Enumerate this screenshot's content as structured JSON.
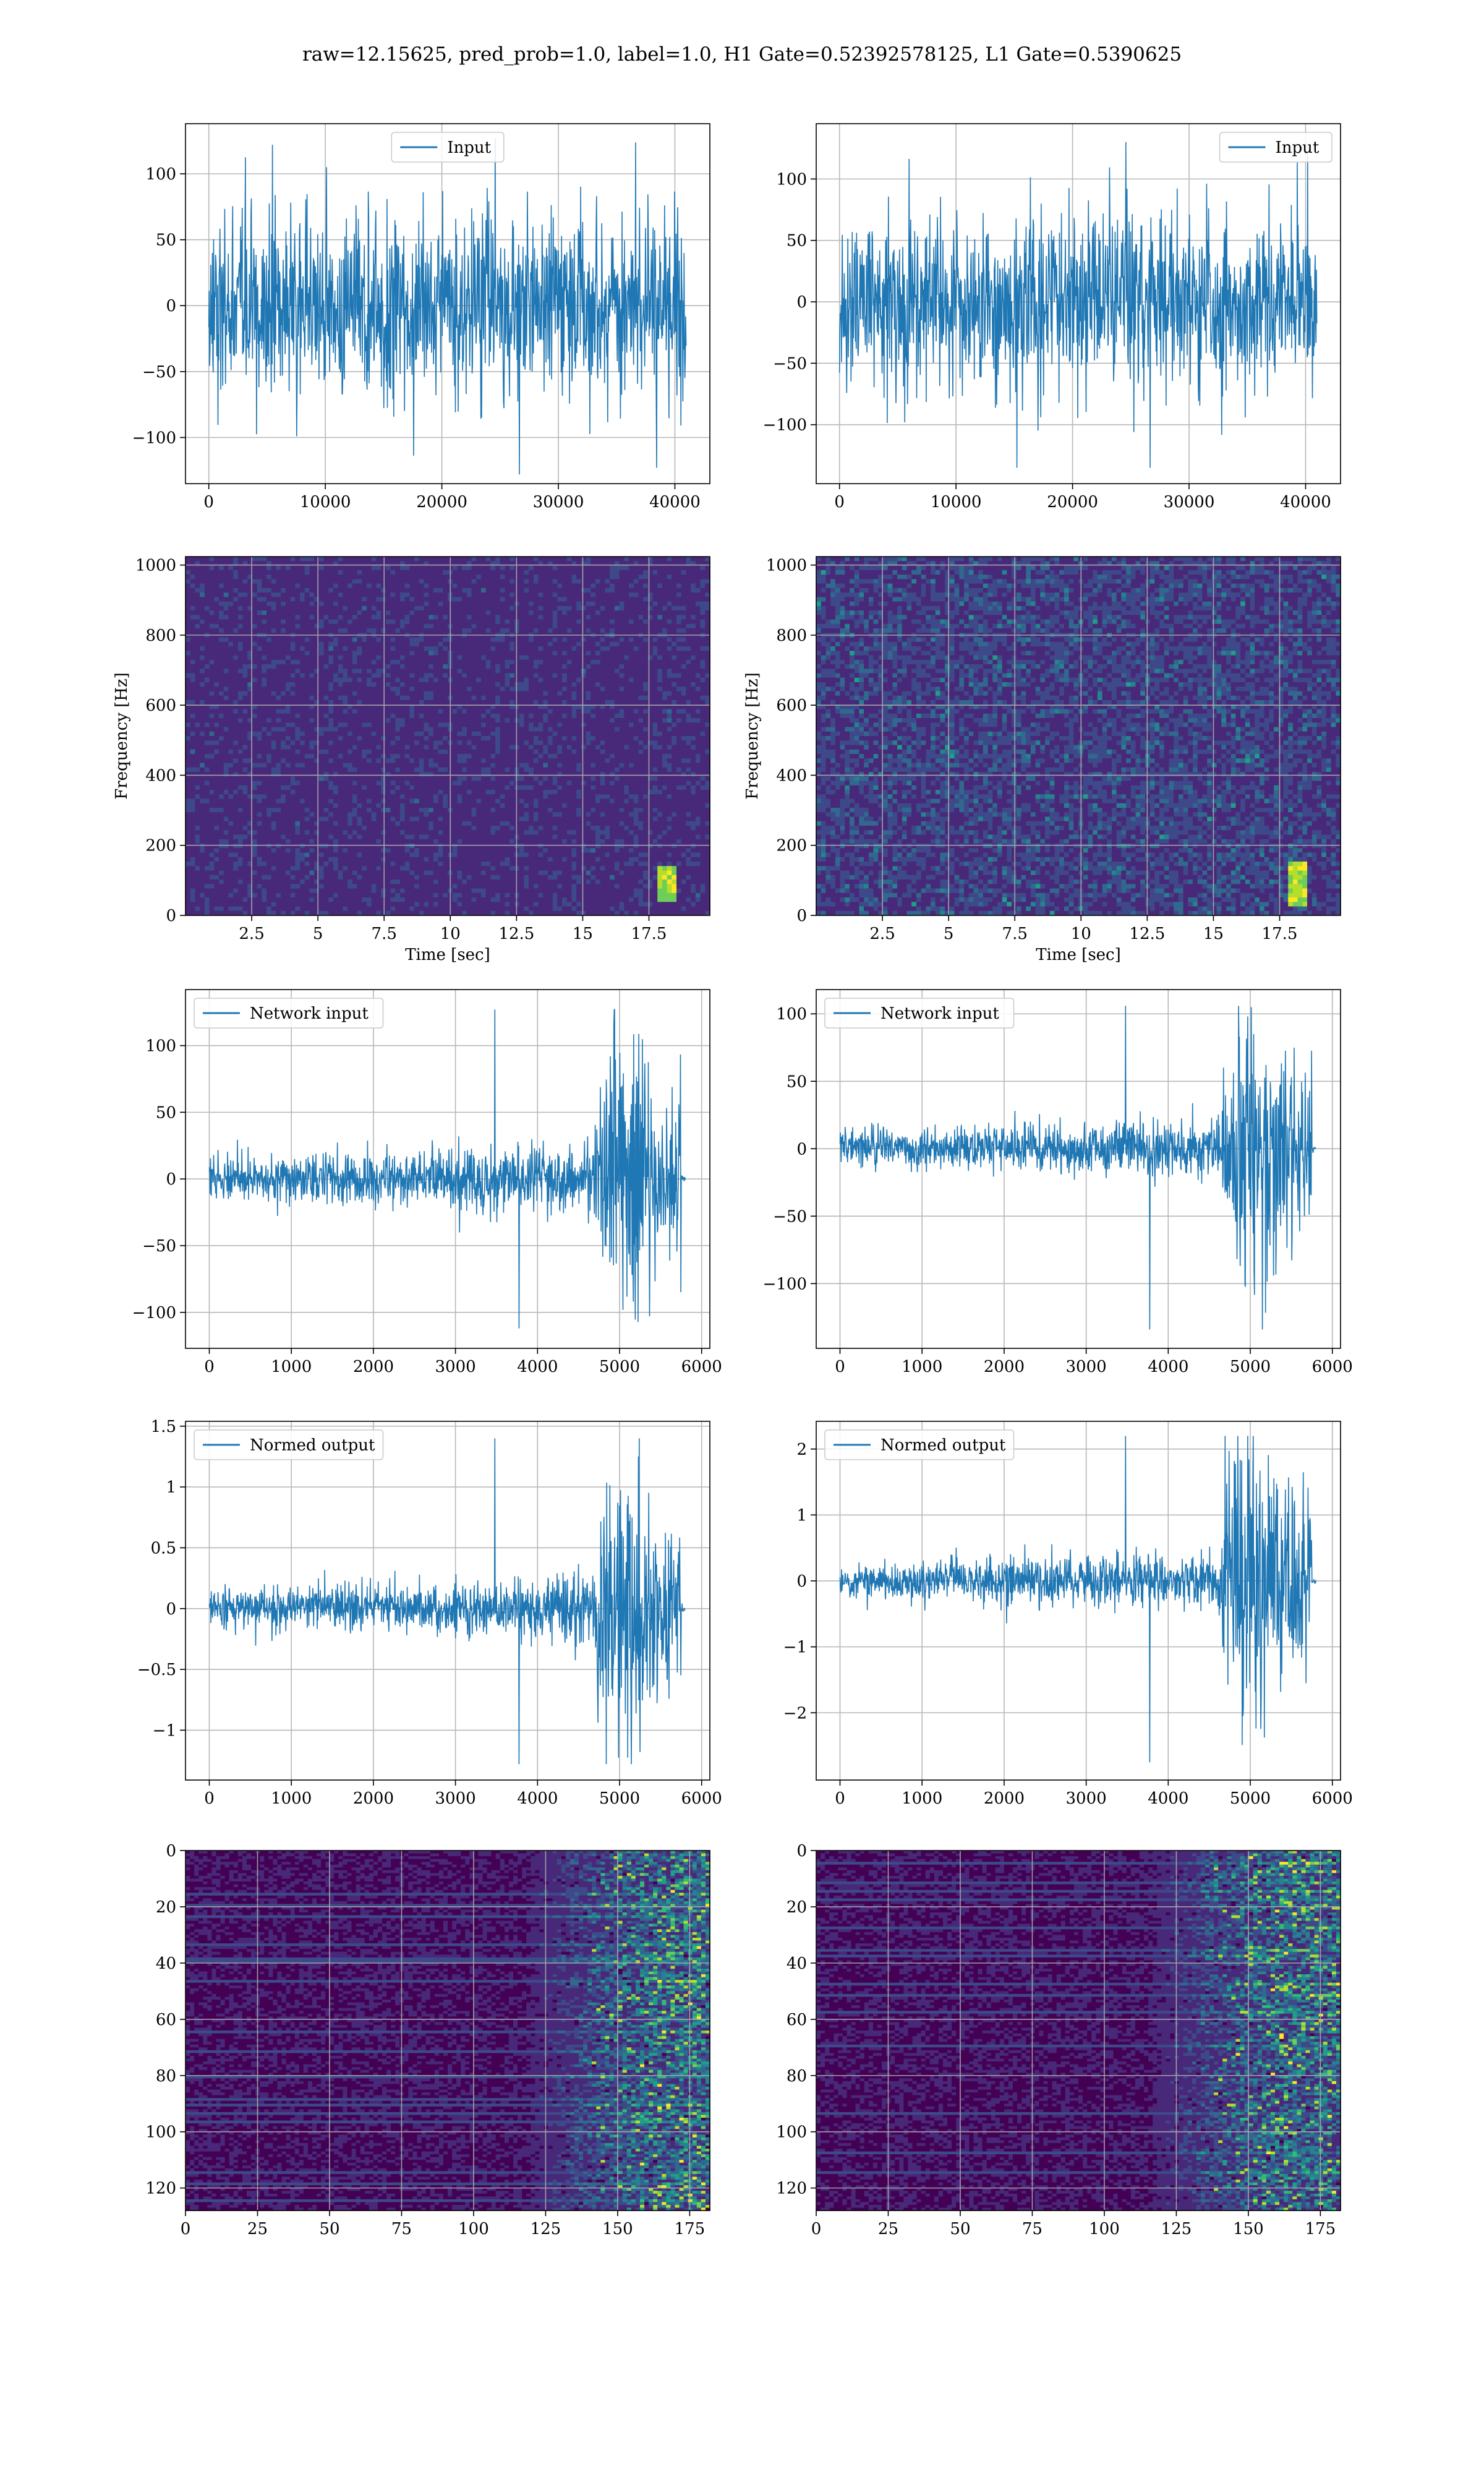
{
  "title": "raw=12.15625, pred_prob=1.0, label=1.0, H1 Gate=0.52392578125, L1 Gate=0.5390625",
  "colors": {
    "line": "#1f77b4",
    "grid": "#b0b0b0",
    "viridis": [
      "#440154",
      "#482878",
      "#3e4989",
      "#31688e",
      "#26828e",
      "#1f9e89",
      "#35b779",
      "#6ece58",
      "#b5de2b",
      "#fde725"
    ]
  },
  "chart_data": [
    {
      "type": "line",
      "panel": "row1-left",
      "legend": [
        "Input"
      ],
      "legend_loc": "upper center",
      "xlim": [
        -2000,
        43000
      ],
      "ylim": [
        -135,
        138
      ],
      "xticks": [
        0,
        10000,
        20000,
        30000,
        40000
      ],
      "yticks": [
        -100,
        -50,
        0,
        50,
        100
      ],
      "series": [
        {
          "name": "Input",
          "x_range": [
            0,
            40960
          ],
          "envelope": {
            "typical_amplitude": 60,
            "max": 127,
            "min": -128
          }
        }
      ]
    },
    {
      "type": "line",
      "panel": "row1-right",
      "legend": [
        "Input"
      ],
      "legend_loc": "upper right",
      "xlim": [
        -2000,
        43000
      ],
      "ylim": [
        -148,
        145
      ],
      "xticks": [
        0,
        10000,
        20000,
        30000,
        40000
      ],
      "yticks": [
        -100,
        -50,
        0,
        50,
        100
      ],
      "series": [
        {
          "name": "Input",
          "x_range": [
            0,
            40960
          ],
          "envelope": {
            "typical_amplitude": 60,
            "max": 130,
            "min": -135
          }
        }
      ]
    },
    {
      "type": "heatmap",
      "panel": "row2-left",
      "xlabel": "Time [sec]",
      "ylabel": "Frequency [Hz]",
      "xlim": [
        0,
        19.8
      ],
      "ylim": [
        0,
        1024
      ],
      "xticks": [
        2.5,
        5.0,
        7.5,
        10.0,
        12.5,
        15.0,
        17.5
      ],
      "yticks": [
        0,
        200,
        400,
        600,
        800,
        1000
      ],
      "features": [
        {
          "time_sec": 18.2,
          "freq_range_hz": [
            40,
            140
          ],
          "note": "bright chirp"
        }
      ]
    },
    {
      "type": "heatmap",
      "panel": "row2-right",
      "xlabel": "Time [sec]",
      "ylabel": "Frequency [Hz]",
      "xlim": [
        0,
        19.8
      ],
      "ylim": [
        0,
        1024
      ],
      "xticks": [
        2.5,
        5.0,
        7.5,
        10.0,
        12.5,
        15.0,
        17.5
      ],
      "yticks": [
        0,
        200,
        400,
        600,
        800,
        1000
      ],
      "features": [
        {
          "time_sec": 18.2,
          "freq_range_hz": [
            30,
            160
          ],
          "note": "bright chirp"
        }
      ]
    },
    {
      "type": "line",
      "panel": "row3-left",
      "legend": [
        "Network input"
      ],
      "legend_loc": "upper left",
      "xlim": [
        -290,
        6100
      ],
      "ylim": [
        -127,
        142
      ],
      "xticks": [
        0,
        1000,
        2000,
        3000,
        4000,
        5000,
        6000
      ],
      "yticks": [
        -100,
        -50,
        0,
        50,
        100
      ],
      "series": [
        {
          "name": "Network input",
          "x_range": [
            0,
            5800
          ],
          "envelope": {
            "pre_merger_amplitude": 18,
            "merger_start": 4700,
            "merger_end": 5750,
            "max": 127,
            "min": -112
          }
        }
      ]
    },
    {
      "type": "line",
      "panel": "row3-right",
      "legend": [
        "Network input"
      ],
      "legend_loc": "upper left",
      "xlim": [
        -290,
        6100
      ],
      "ylim": [
        -148,
        118
      ],
      "xticks": [
        0,
        1000,
        2000,
        3000,
        4000,
        5000,
        6000
      ],
      "yticks": [
        -100,
        -50,
        0,
        50,
        100
      ],
      "series": [
        {
          "name": "Network input",
          "x_range": [
            0,
            5800
          ],
          "envelope": {
            "pre_merger_amplitude": 15,
            "merger_start": 4650,
            "merger_end": 5750,
            "max": 106,
            "min": -134
          }
        }
      ]
    },
    {
      "type": "line",
      "panel": "row4-left",
      "legend": [
        "Normed output"
      ],
      "legend_loc": "upper left",
      "xlim": [
        -290,
        6100
      ],
      "ylim": [
        -1.41,
        1.54
      ],
      "xticks": [
        0,
        1000,
        2000,
        3000,
        4000,
        5000,
        6000
      ],
      "yticks": [
        -1.0,
        -0.5,
        0.0,
        0.5,
        1.0,
        1.5
      ],
      "series": [
        {
          "name": "Normed output",
          "x_range": [
            0,
            5800
          ],
          "envelope": {
            "pre_merger_amplitude": 0.18,
            "merger_start": 4700,
            "merger_end": 5750,
            "max": 1.4,
            "min": -1.28
          }
        }
      ]
    },
    {
      "type": "line",
      "panel": "row4-right",
      "legend": [
        "Normed output"
      ],
      "legend_loc": "upper left",
      "xlim": [
        -290,
        6100
      ],
      "ylim": [
        -3.02,
        2.42
      ],
      "xticks": [
        0,
        1000,
        2000,
        3000,
        4000,
        5000,
        6000
      ],
      "yticks": [
        -2,
        -1,
        0,
        1,
        2
      ],
      "series": [
        {
          "name": "Normed output",
          "x_range": [
            0,
            5800
          ],
          "envelope": {
            "pre_merger_amplitude": 0.3,
            "merger_start": 4650,
            "merger_end": 5750,
            "max": 2.2,
            "min": -2.75
          }
        }
      ]
    },
    {
      "type": "heatmap",
      "panel": "row5-left",
      "xlim": [
        0,
        182
      ],
      "ylim": [
        128,
        0
      ],
      "xticks": [
        0,
        25,
        50,
        75,
        100,
        125,
        150,
        175
      ],
      "yticks": [
        0,
        20,
        40,
        60,
        80,
        100,
        120
      ],
      "features": [
        {
          "x_range": [
            118,
            182
          ],
          "note": "activations concentrated in late columns"
        }
      ]
    },
    {
      "type": "heatmap",
      "panel": "row5-right",
      "xlim": [
        0,
        182
      ],
      "ylim": [
        128,
        0
      ],
      "xticks": [
        0,
        25,
        50,
        75,
        100,
        125,
        150,
        175
      ],
      "yticks": [
        0,
        20,
        40,
        60,
        80,
        100,
        120
      ],
      "features": [
        {
          "x_range": [
            115,
            182
          ],
          "note": "activations concentrated in late columns"
        }
      ]
    }
  ]
}
